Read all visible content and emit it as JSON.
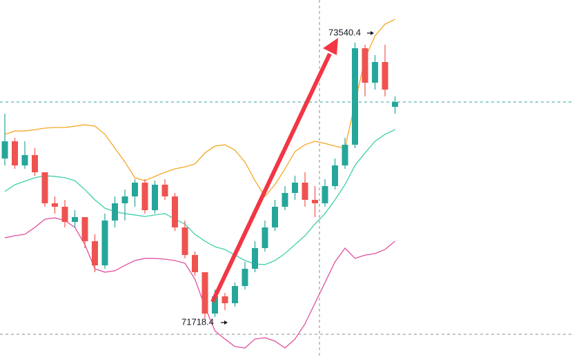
{
  "chart_data": {
    "type": "candlestick",
    "annotations": [
      "73540.4",
      "71718.4"
    ],
    "ylim": [
      71463.3,
      73822.8
    ],
    "up_color": "#26a69a",
    "down_color": "#ef5350",
    "categories": [
      null,
      null,
      null,
      null,
      null,
      null,
      null,
      null,
      null,
      null,
      null,
      null,
      null,
      null,
      null,
      null,
      null,
      null,
      null,
      null,
      null,
      null,
      null,
      null,
      null,
      null,
      null,
      null,
      null,
      null,
      null,
      null,
      null,
      null,
      null,
      null,
      null,
      null,
      null,
      null
    ],
    "open": [
      72775.2,
      72889.0,
      72729.6,
      72797.9,
      72684.1,
      72479.1,
      72456.3,
      72356.1,
      72388.0,
      72228.6,
      72069.1,
      72365.2,
      72479.1,
      72524.6,
      72615.7,
      72433.5,
      72602.1,
      72524.6,
      72319.7,
      72137.5,
      72023.6,
      71750.3,
      71864.2,
      71818.6,
      71932.5,
      72046.4,
      72183.0,
      72319.7,
      72456.3,
      72547.4,
      72615.7,
      72501.9,
      72479.1,
      72593.0,
      72729.6,
      72866.3,
      73504.0,
      73276.2,
      73412.9,
      73116.8
    ],
    "high": [
      73071.2,
      72911.8,
      72889.0,
      72843.5,
      72684.1,
      72524.6,
      72501.9,
      72433.5,
      72388.0,
      72274.1,
      72410.8,
      72524.6,
      72570.2,
      72638.5,
      72638.5,
      72629.4,
      72638.5,
      72547.4,
      72365.2,
      72160.2,
      72023.6,
      71909.7,
      71886.9,
      71955.3,
      72091.9,
      72228.6,
      72365.2,
      72501.9,
      72593.0,
      72661.3,
      72684.1,
      72593.0,
      72638.5,
      72775.2,
      72911.8,
      73540.4,
      73526.7,
      73458.4,
      73526.7,
      73185.1
    ],
    "low": [
      72729.6,
      72706.8,
      72706.8,
      72661.3,
      72456.3,
      72410.8,
      72319.7,
      72319.7,
      72183.0,
      72023.6,
      72046.4,
      72319.7,
      72365.2,
      72456.3,
      72410.8,
      72410.8,
      72501.9,
      72296.9,
      72114.7,
      72000.8,
      71718.4,
      71727.5,
      71773.1,
      71795.8,
      71909.7,
      72023.6,
      72160.2,
      72296.9,
      72433.5,
      72501.9,
      72456.3,
      72388.0,
      72456.3,
      72570.2,
      72706.8,
      72843.5,
      73185.1,
      73230.7,
      73185.1,
      73071.2
    ],
    "close": [
      72889.0,
      72729.6,
      72797.9,
      72684.1,
      72479.1,
      72456.3,
      72356.1,
      72388.0,
      72228.6,
      72069.1,
      72365.2,
      72479.1,
      72524.6,
      72615.7,
      72433.5,
      72602.1,
      72524.6,
      72319.7,
      72137.5,
      72023.6,
      71750.3,
      71864.2,
      71818.6,
      71932.5,
      72046.4,
      72183.0,
      72319.7,
      72456.3,
      72547.4,
      72615.7,
      72501.9,
      72479.1,
      72593.0,
      72729.6,
      72866.3,
      73504.0,
      73276.2,
      73412.9,
      73230.7,
      73148.7
    ],
    "series": [
      {
        "color": "#f5a623",
        "values": [
          72935,
          72957,
          72957,
          72966,
          72976,
          72980,
          72980,
          72989,
          72998,
          72989,
          72935,
          72844,
          72752,
          72648,
          72629,
          72657,
          72684,
          72707,
          72720,
          72739,
          72812,
          72857,
          72866,
          72830,
          72752,
          72629,
          72525,
          72602,
          72707,
          72821,
          72866,
          72889,
          72875,
          72857,
          72844,
          73140,
          73436,
          73586,
          73663,
          73695
        ]
      },
      {
        "color": "#3fcfa9",
        "values": [
          72557,
          72602,
          72625,
          72648,
          72661,
          72657,
          72648,
          72629,
          72570,
          72502,
          72447,
          72424,
          72411,
          72402,
          72392,
          72402,
          72411,
          72374,
          72342,
          72274,
          72229,
          72192,
          72174,
          72137,
          72101,
          72078,
          72074,
          72101,
          72147,
          72206,
          72265,
          72342,
          72411,
          72502,
          72602,
          72730,
          72812,
          72889,
          72935,
          72966
        ]
      },
      {
        "color": "#e0509f",
        "values": [
          72251,
          72265,
          72274,
          72320,
          72374,
          72383,
          72365,
          72320,
          72206,
          72046,
          72024,
          72033,
          72069,
          72101,
          72115,
          72115,
          72110,
          72101,
          72083,
          71978,
          71796,
          71636,
          71582,
          71532,
          71523,
          71582,
          71591,
          71568,
          71523,
          71582,
          71682,
          71819,
          71955,
          72092,
          72183,
          72115,
          72137,
          72147,
          72174,
          72229
        ]
      }
    ]
  }
}
